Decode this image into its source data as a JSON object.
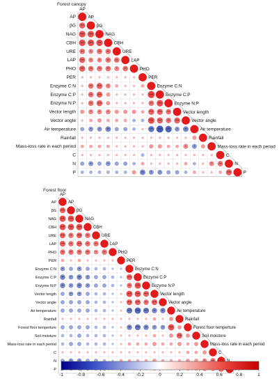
{
  "colors": {
    "positive": "#e31a1c",
    "negative": "#1f3aa8",
    "colorbar_stops": [
      "#00008b",
      "#3a4fc7",
      "#9aa6e0",
      "#ffffff",
      "#f3a6a0",
      "#e8433a",
      "#c80000"
    ]
  },
  "chart_data": [
    {
      "type": "heatmap",
      "subtype": "correlogram",
      "title": "Forest canopy",
      "variables": [
        "AP",
        "βG",
        "NAG",
        "CBH",
        "URE",
        "LAP",
        "PHO",
        "PER",
        "Enzyme C:N",
        "Enzyme C:P",
        "Enzyme N:P",
        "Vector length",
        "Vector angle",
        "Air temperature",
        "Rainfall",
        "Mass-loss rate in each period",
        "C",
        "N",
        "P"
      ],
      "significance_markers": [
        "*",
        "**",
        "***"
      ],
      "matrix": [
        [
          1
        ],
        [
          0.6,
          1
        ],
        [
          0.7,
          0.7,
          1
        ],
        [
          0.7,
          0.7,
          0.7,
          1
        ],
        [
          0.5,
          0.4,
          0.5,
          0.5,
          1
        ],
        [
          0.6,
          0.4,
          0.4,
          0.5,
          0.5,
          1
        ],
        [
          0.6,
          0.5,
          0.5,
          0.5,
          0.4,
          0.5,
          1
        ],
        [
          0.1,
          0.1,
          0.1,
          0.1,
          0.1,
          0.1,
          0.1,
          1
        ],
        [
          0.1,
          0.5,
          0.6,
          0.4,
          0.2,
          0.1,
          0.1,
          0.2,
          1
        ],
        [
          0.1,
          0.5,
          0.6,
          0.3,
          0.1,
          0.1,
          0.1,
          0.1,
          0.8,
          1
        ],
        [
          0.1,
          0.5,
          0.6,
          0.3,
          0.1,
          0.1,
          0.1,
          0.1,
          0.5,
          0.7,
          1
        ],
        [
          0.3,
          0.4,
          0.4,
          0.4,
          0.3,
          0.3,
          0.3,
          0.2,
          0.6,
          0.6,
          0.5,
          1
        ],
        [
          0.1,
          0.2,
          0.3,
          0.2,
          0.2,
          0.2,
          -0.2,
          -0.2,
          0.7,
          0.6,
          0.5,
          0.6,
          1
        ],
        [
          -0.3,
          -0.4,
          -0.4,
          -0.5,
          -0.3,
          -0.3,
          -0.2,
          0.1,
          -0.6,
          -0.8,
          -0.7,
          -0.4,
          -0.5,
          1
        ],
        [
          0.1,
          0.1,
          0.1,
          0.1,
          0.1,
          0.1,
          0.1,
          0.1,
          0.1,
          0.1,
          0.1,
          0.1,
          0.1,
          0.3,
          1
        ],
        [
          0.2,
          0.2,
          0.2,
          0.2,
          0.1,
          0.1,
          0.1,
          0.1,
          0.3,
          0.3,
          0.2,
          0.2,
          0.4,
          -0.4,
          0.3,
          1
        ],
        [
          0.1,
          0.1,
          0.1,
          0.1,
          0.1,
          0.1,
          0.1,
          -0.2,
          0.1,
          0.1,
          0.1,
          0.1,
          0.1,
          0.1,
          0.1,
          0.1,
          1
        ],
        [
          -0.3,
          -0.4,
          -0.3,
          -0.4,
          -0.3,
          -0.3,
          -0.2,
          0.2,
          0.1,
          0.1,
          0.1,
          0.1,
          0.2,
          -0.2,
          0.1,
          0.4,
          0.5,
          1
        ],
        [
          -0.2,
          -0.2,
          -0.2,
          -0.2,
          -0.2,
          -0.2,
          0.3,
          -0.5,
          -0.4,
          -0.4,
          -0.3,
          -0.3,
          -0.2,
          0.2,
          0.1,
          0.1,
          0.2,
          0.6,
          1
        ]
      ]
    },
    {
      "type": "heatmap",
      "subtype": "correlogram",
      "title": "Forest floor",
      "variables": [
        "AP",
        "βG",
        "NAG",
        "CBH",
        "URE",
        "LAP",
        "PHO",
        "PER",
        "Enzyme C:N",
        "Enzyme C:P",
        "Enzyme N:P",
        "Vector length",
        "Vector angle",
        "Air temperature",
        "Rainfall",
        "Forest floor temperture",
        "Soil moisture",
        "Mass-loss rate in each period",
        "C",
        "N",
        "P"
      ],
      "significance_markers": [
        "*",
        "**",
        "***"
      ],
      "matrix": [
        [
          1
        ],
        [
          0.6,
          1
        ],
        [
          0.7,
          0.7,
          1
        ],
        [
          0.7,
          0.7,
          0.7,
          1
        ],
        [
          0.6,
          0.5,
          0.6,
          0.5,
          1
        ],
        [
          0.6,
          0.5,
          0.6,
          0.5,
          0.5,
          1
        ],
        [
          0.5,
          0.5,
          0.5,
          0.5,
          0.4,
          0.5,
          1
        ],
        [
          0.2,
          0.1,
          0.2,
          0.1,
          0.1,
          0.1,
          0.1,
          1
        ],
        [
          -0.4,
          -0.3,
          -0.4,
          -0.3,
          -0.2,
          -0.2,
          -0.1,
          -0.1,
          1
        ],
        [
          -0.5,
          -0.4,
          -0.5,
          -0.4,
          -0.3,
          -0.3,
          -0.2,
          -0.1,
          0.6,
          1
        ],
        [
          -0.5,
          -0.4,
          -0.5,
          -0.4,
          -0.3,
          -0.3,
          -0.2,
          -0.1,
          0.5,
          0.7,
          1
        ],
        [
          -0.3,
          -0.4,
          -0.4,
          -0.3,
          -0.2,
          -0.2,
          -0.1,
          0.1,
          0.7,
          0.7,
          0.6,
          1
        ],
        [
          -0.3,
          -0.3,
          -0.3,
          -0.3,
          -0.2,
          -0.2,
          -0.1,
          0.1,
          0.6,
          0.6,
          0.5,
          0.6,
          1
        ],
        [
          -0.3,
          -0.3,
          -0.3,
          -0.3,
          -0.2,
          -0.2,
          -0.1,
          0.1,
          -0.6,
          -0.7,
          -0.6,
          -0.5,
          -0.5,
          1
        ],
        [
          0.1,
          0.1,
          0.1,
          0.1,
          0.1,
          0.1,
          0.1,
          0.1,
          0.1,
          0.1,
          0.1,
          0.2,
          0.1,
          0.3,
          1
        ],
        [
          -0.3,
          -0.3,
          -0.3,
          -0.3,
          -0.2,
          -0.2,
          -0.1,
          0.1,
          -0.5,
          -0.6,
          -0.5,
          -0.4,
          -0.4,
          0.7,
          0.3,
          1
        ],
        [
          -0.2,
          -0.2,
          -0.3,
          -0.2,
          -0.2,
          -0.2,
          -0.1,
          0.1,
          0.1,
          0.1,
          0.1,
          0.2,
          0.1,
          0.3,
          0.6,
          0.3,
          1
        ],
        [
          -0.2,
          -0.3,
          -0.3,
          -0.2,
          -0.2,
          -0.2,
          -0.1,
          0.1,
          0.2,
          0.2,
          0.2,
          0.3,
          0.2,
          0.2,
          0.3,
          0.2,
          0.3,
          1
        ],
        [
          0.1,
          0.1,
          0.1,
          0.1,
          0.1,
          0.1,
          0.1,
          0.1,
          0.1,
          0.1,
          0.1,
          0.1,
          0.1,
          0.1,
          0.1,
          0.2,
          0.2,
          0.3,
          1
        ],
        [
          -0.3,
          -0.4,
          -0.4,
          -0.3,
          -0.3,
          -0.2,
          -0.1,
          0.2,
          0.2,
          0.2,
          0.2,
          0.3,
          0.2,
          0.2,
          0.2,
          0.3,
          0.3,
          0.4,
          0.5,
          1
        ],
        [
          -0.2,
          -0.2,
          -0.2,
          -0.2,
          -0.2,
          -0.2,
          -0.1,
          0.1,
          0.1,
          0.1,
          0.1,
          0.2,
          0.1,
          0.1,
          0.1,
          0.2,
          0.2,
          0.3,
          0.3,
          0.5,
          1
        ]
      ]
    }
  ],
  "colorbar": {
    "min": -1,
    "max": 1,
    "tick_labels": [
      "-1",
      "-0.8",
      "-0.6",
      "-0.4",
      "-0.2",
      "0",
      "0.2",
      "0.4",
      "0.6",
      "0.8",
      "1"
    ]
  }
}
